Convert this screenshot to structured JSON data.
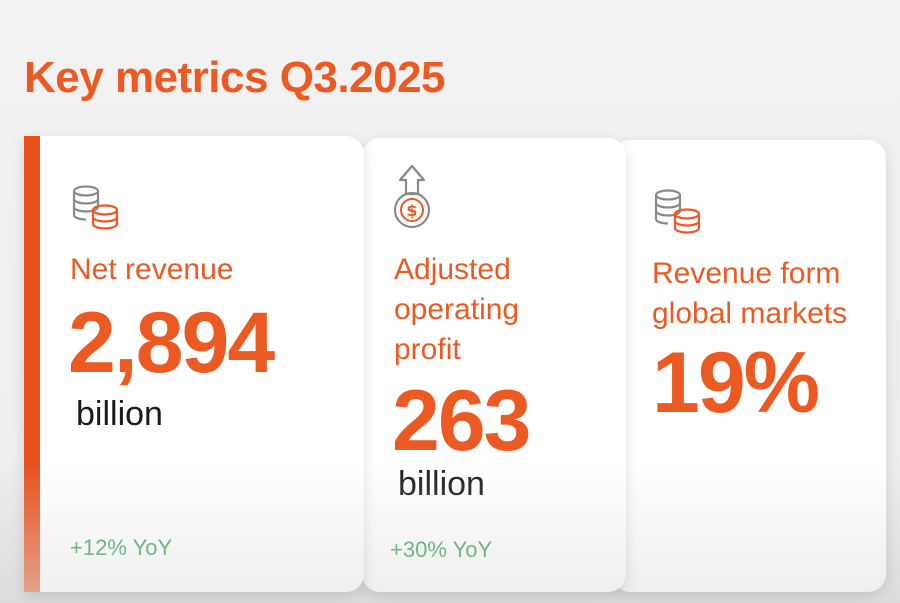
{
  "page": {
    "title": "Key metrics Q3.2025"
  },
  "colors": {
    "accent": "#ec5a24",
    "accent_bar": "#e8501e",
    "positive": "#2e9e4a",
    "icon_gray": "#8a8a8a",
    "text_dark": "#1a1a1a"
  },
  "cards": [
    {
      "icon": "coins-stack-icon",
      "label": "Net revenue",
      "value": "2,894",
      "unit": "billion",
      "change": "+12% YoY"
    },
    {
      "icon": "dollar-coin-up-arrow-icon",
      "label_lines": [
        "Adjusted",
        "operating",
        "profit"
      ],
      "value": "263",
      "unit": "billion",
      "change": "+30% YoY"
    },
    {
      "icon": "coins-stack-icon",
      "label_lines": [
        "Revenue form",
        "global markets"
      ],
      "value": "19%"
    }
  ]
}
